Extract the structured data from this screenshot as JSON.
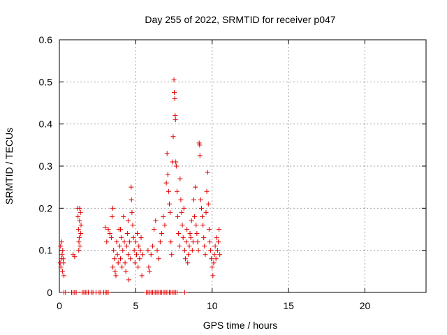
{
  "chart_data": {
    "type": "scatter",
    "title": "Day 255 of 2022, SRMTID for receiver p047",
    "xlabel": "GPS time / hours",
    "ylabel": "SRMTID / TECUs",
    "xlim": [
      0,
      24
    ],
    "ylim": [
      0,
      0.6
    ],
    "xticks": [
      0,
      5,
      10,
      15,
      20
    ],
    "yticks": [
      0,
      0.1,
      0.2,
      0.3,
      0.4,
      0.5,
      0.6
    ],
    "xtick_labels": [
      "0",
      "5",
      "10",
      "15",
      "20"
    ],
    "ytick_labels": [
      "0",
      "0.1",
      "0.2",
      "0.3",
      "0.4",
      "0.5",
      "0.6"
    ],
    "grid": true,
    "marker": "+",
    "marker_color": "#e00000",
    "points": [
      [
        0.05,
        0.07
      ],
      [
        0.08,
        0.11
      ],
      [
        0.1,
        0.06
      ],
      [
        0.12,
        0.08
      ],
      [
        0.15,
        0.12
      ],
      [
        0.18,
        0.09
      ],
      [
        0.2,
        0.05
      ],
      [
        0.22,
        0.1
      ],
      [
        0.25,
        0.08
      ],
      [
        0.28,
        0.07
      ],
      [
        0.3,
        0.04
      ],
      [
        0.3,
        0.0
      ],
      [
        0.4,
        0.0
      ],
      [
        0.8,
        0.0
      ],
      [
        0.9,
        0.0
      ],
      [
        1.0,
        0.0
      ],
      [
        1.1,
        0.0
      ],
      [
        1.5,
        0.0
      ],
      [
        1.6,
        0.0
      ],
      [
        1.7,
        0.0
      ],
      [
        1.8,
        0.0
      ],
      [
        1.9,
        0.0
      ],
      [
        2.1,
        0.0
      ],
      [
        2.2,
        0.0
      ],
      [
        2.4,
        0.0
      ],
      [
        2.6,
        0.0
      ],
      [
        2.7,
        0.0
      ],
      [
        2.9,
        0.0
      ],
      [
        3.0,
        0.0
      ],
      [
        3.1,
        0.0
      ],
      [
        3.2,
        0.0
      ],
      [
        0.9,
        0.09
      ],
      [
        1.0,
        0.085
      ],
      [
        1.2,
        0.2
      ],
      [
        1.22,
        0.18
      ],
      [
        1.25,
        0.15
      ],
      [
        1.28,
        0.12
      ],
      [
        1.3,
        0.13
      ],
      [
        1.32,
        0.17
      ],
      [
        1.35,
        0.11
      ],
      [
        1.38,
        0.19
      ],
      [
        1.4,
        0.14
      ],
      [
        1.42,
        0.16
      ],
      [
        1.27,
        0.1
      ],
      [
        1.33,
        0.2
      ],
      [
        3.0,
        0.155
      ],
      [
        3.1,
        0.12
      ],
      [
        3.2,
        0.15
      ],
      [
        3.3,
        0.14
      ],
      [
        3.4,
        0.13
      ],
      [
        3.45,
        0.18
      ],
      [
        3.5,
        0.2
      ],
      [
        3.55,
        0.1
      ],
      [
        3.6,
        0.08
      ],
      [
        3.65,
        0.05
      ],
      [
        3.7,
        0.04
      ],
      [
        3.75,
        0.12
      ],
      [
        3.8,
        0.09
      ],
      [
        3.85,
        0.07
      ],
      [
        3.9,
        0.15
      ],
      [
        3.95,
        0.11
      ],
      [
        4.0,
        0.08
      ],
      [
        4.05,
        0.13
      ],
      [
        4.1,
        0.06
      ],
      [
        4.15,
        0.1
      ],
      [
        4.2,
        0.18
      ],
      [
        4.25,
        0.12
      ],
      [
        4.3,
        0.07
      ],
      [
        4.35,
        0.05
      ],
      [
        4.4,
        0.11
      ],
      [
        4.45,
        0.14
      ],
      [
        4.5,
        0.09
      ],
      [
        4.55,
        0.03
      ],
      [
        4.6,
        0.12
      ],
      [
        4.65,
        0.08
      ],
      [
        4.7,
        0.25
      ],
      [
        4.72,
        0.22
      ],
      [
        4.75,
        0.19
      ],
      [
        4.8,
        0.16
      ],
      [
        4.85,
        0.13
      ],
      [
        4.9,
        0.1
      ],
      [
        4.95,
        0.07
      ],
      [
        5.0,
        0.12
      ],
      [
        5.05,
        0.09
      ],
      [
        5.1,
        0.14
      ],
      [
        5.15,
        0.06
      ],
      [
        5.2,
        0.11
      ],
      [
        5.25,
        0.08
      ],
      [
        5.3,
        0.1
      ],
      [
        5.35,
        0.13
      ],
      [
        5.4,
        0.04
      ],
      [
        5.45,
        0.09
      ],
      [
        4.5,
        0.17
      ],
      [
        4.0,
        0.15
      ],
      [
        3.5,
        0.06
      ],
      [
        5.7,
        0.0
      ],
      [
        5.8,
        0.0
      ],
      [
        5.9,
        0.0
      ],
      [
        6.0,
        0.0
      ],
      [
        6.1,
        0.0
      ],
      [
        6.2,
        0.0
      ],
      [
        6.3,
        0.0
      ],
      [
        6.4,
        0.0
      ],
      [
        6.5,
        0.0
      ],
      [
        6.6,
        0.0
      ],
      [
        6.7,
        0.0
      ],
      [
        6.8,
        0.0
      ],
      [
        6.9,
        0.0
      ],
      [
        7.0,
        0.0
      ],
      [
        7.1,
        0.0
      ],
      [
        7.2,
        0.0
      ],
      [
        7.3,
        0.0
      ],
      [
        7.4,
        0.0
      ],
      [
        7.5,
        0.0
      ],
      [
        7.6,
        0.0
      ],
      [
        7.7,
        0.0
      ],
      [
        8.2,
        0.0
      ],
      [
        5.8,
        0.1
      ],
      [
        5.85,
        0.06
      ],
      [
        5.9,
        0.05
      ],
      [
        6.0,
        0.09
      ],
      [
        6.1,
        0.11
      ],
      [
        6.2,
        0.15
      ],
      [
        6.3,
        0.17
      ],
      [
        6.4,
        0.1
      ],
      [
        6.5,
        0.08
      ],
      [
        6.6,
        0.12
      ],
      [
        6.7,
        0.14
      ],
      [
        6.8,
        0.18
      ],
      [
        6.9,
        0.16
      ],
      [
        7.0,
        0.26
      ],
      [
        7.05,
        0.33
      ],
      [
        7.1,
        0.28
      ],
      [
        7.15,
        0.24
      ],
      [
        7.2,
        0.21
      ],
      [
        7.25,
        0.19
      ],
      [
        7.3,
        0.12
      ],
      [
        7.35,
        0.09
      ],
      [
        7.4,
        0.31
      ],
      [
        7.45,
        0.37
      ],
      [
        7.5,
        0.505
      ],
      [
        7.52,
        0.475
      ],
      [
        7.55,
        0.46
      ],
      [
        7.58,
        0.42
      ],
      [
        7.6,
        0.41
      ],
      [
        7.62,
        0.31
      ],
      [
        7.65,
        0.3
      ],
      [
        7.7,
        0.24
      ],
      [
        7.75,
        0.18
      ],
      [
        7.8,
        0.14
      ],
      [
        7.85,
        0.11
      ],
      [
        7.9,
        0.27
      ],
      [
        7.95,
        0.22
      ],
      [
        8.0,
        0.19
      ],
      [
        8.05,
        0.16
      ],
      [
        8.1,
        0.13
      ],
      [
        8.15,
        0.2
      ],
      [
        8.2,
        0.1
      ],
      [
        8.25,
        0.08
      ],
      [
        8.3,
        0.12
      ],
      [
        8.35,
        0.15
      ],
      [
        8.4,
        0.07
      ],
      [
        8.45,
        0.09
      ],
      [
        8.5,
        0.11
      ],
      [
        8.55,
        0.14
      ],
      [
        8.6,
        0.13
      ],
      [
        8.65,
        0.17
      ],
      [
        8.7,
        0.1
      ],
      [
        8.75,
        0.12
      ],
      [
        8.8,
        0.22
      ],
      [
        8.85,
        0.18
      ],
      [
        8.9,
        0.25
      ],
      [
        8.95,
        0.16
      ],
      [
        9.0,
        0.14
      ],
      [
        9.05,
        0.12
      ],
      [
        9.1,
        0.1
      ],
      [
        9.15,
        0.355
      ],
      [
        9.18,
        0.35
      ],
      [
        9.2,
        0.325
      ],
      [
        9.25,
        0.22
      ],
      [
        9.3,
        0.2
      ],
      [
        9.35,
        0.18
      ],
      [
        9.4,
        0.16
      ],
      [
        9.45,
        0.13
      ],
      [
        9.5,
        0.11
      ],
      [
        9.55,
        0.09
      ],
      [
        9.6,
        0.19
      ],
      [
        9.65,
        0.24
      ],
      [
        9.7,
        0.285
      ],
      [
        9.75,
        0.21
      ],
      [
        9.8,
        0.15
      ],
      [
        9.85,
        0.12
      ],
      [
        9.9,
        0.1
      ],
      [
        9.95,
        0.08
      ],
      [
        10.0,
        0.06
      ],
      [
        10.05,
        0.04
      ],
      [
        10.1,
        0.07
      ],
      [
        10.15,
        0.09
      ],
      [
        10.2,
        0.11
      ],
      [
        10.25,
        0.08
      ],
      [
        10.3,
        0.13
      ],
      [
        10.35,
        0.1
      ],
      [
        10.4,
        0.12
      ],
      [
        10.45,
        0.15
      ],
      [
        10.5,
        0.09
      ]
    ]
  }
}
